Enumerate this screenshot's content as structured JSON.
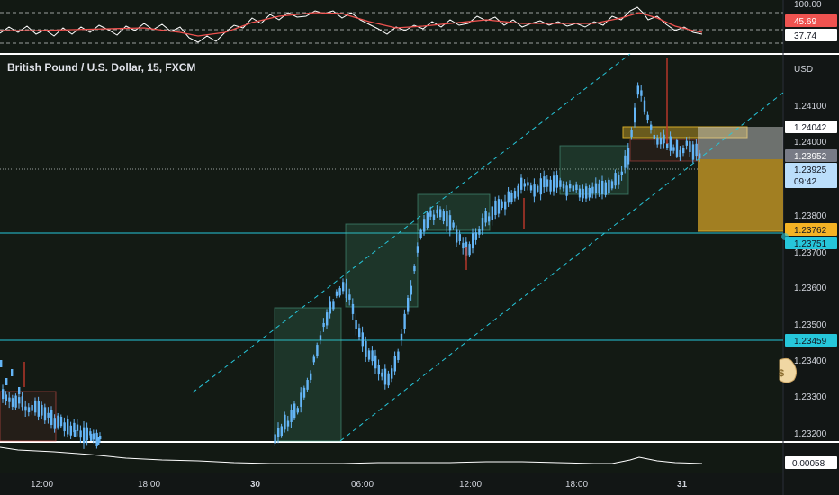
{
  "symbol_title": "British Pound / U.S. Dollar, 15, FXCM",
  "currency": "USD",
  "price_axis": {
    "ticks": [
      "1.24100",
      "1.24000",
      "1.23800",
      "1.23700",
      "1.23600",
      "1.23500",
      "1.23400",
      "1.23300",
      "1.23200"
    ],
    "tags": {
      "level_top": "1.24042",
      "last_gray": "1.23952",
      "current": "1.23925",
      "countdown": "09:42",
      "target": "1.23762",
      "line_upper": "1.23751",
      "line_lower": "1.23459"
    }
  },
  "oscillator_top": {
    "ticks": [
      "100.00",
      "45.69",
      "37.74"
    ]
  },
  "oscillator_bottom": {
    "value": "0.00058"
  },
  "time_axis": [
    "12:00",
    "18:00",
    "30",
    "06:00",
    "12:00",
    "18:00",
    "31"
  ],
  "colors": {
    "background": "#131a14",
    "candle": "#64b5f6",
    "accent_cyan": "#26c6da",
    "accent_red": "#ef5350",
    "target_gold": "#b5922f"
  },
  "icons": [
    "money-bag-icon"
  ]
}
